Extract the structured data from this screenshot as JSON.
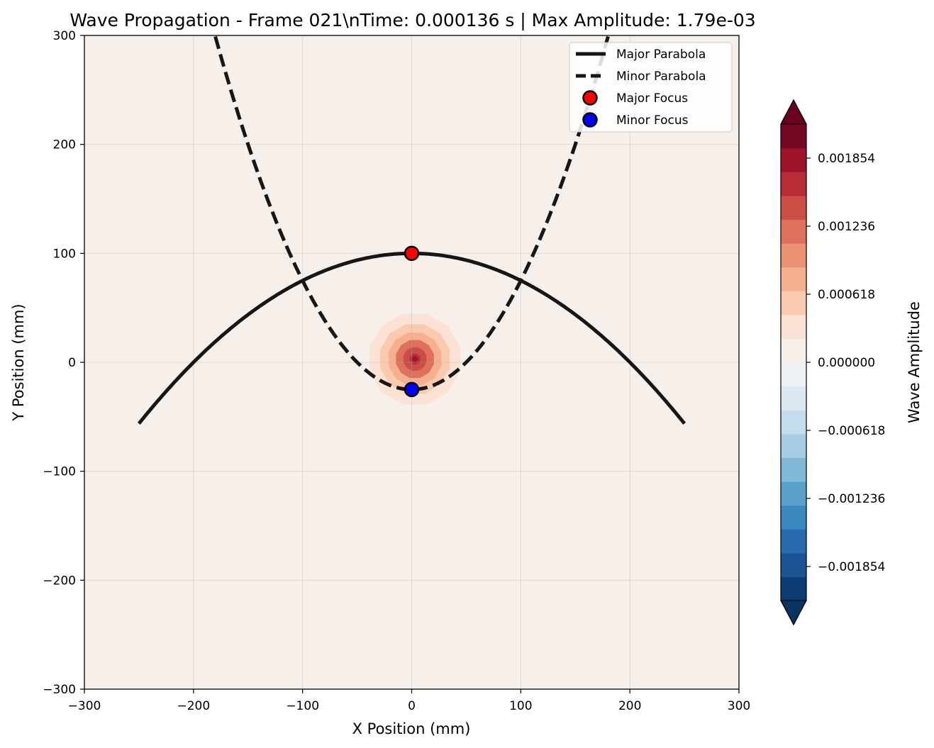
{
  "chart_data": {
    "type": "heatmap",
    "title": "Wave Propagation - Frame 021\\nTime: 0.000136 s | Max Amplitude: 1.79e-03",
    "xlabel": "X Position (mm)",
    "ylabel": "Y Position (mm)",
    "xlim": [
      -300,
      300
    ],
    "ylim": [
      -300,
      300
    ],
    "xticks": [
      -300,
      -200,
      -100,
      0,
      100,
      200,
      300
    ],
    "yticks": [
      -300,
      -200,
      -100,
      0,
      100,
      200,
      300
    ],
    "grid": true,
    "legend_position": "top-right",
    "background_value": 0.0,
    "wave_field": {
      "center": [
        3,
        3
      ],
      "peak_amplitude": 0.00179,
      "low_level_region": {
        "shape": "diamond",
        "half_diagonal_x": 168,
        "half_diagonal_y": 168,
        "center": [
          3,
          3
        ],
        "value": 0.0001
      },
      "rings": [
        {
          "radius": 43,
          "value": 0.0003
        },
        {
          "radius": 33,
          "value": 0.0006
        },
        {
          "radius": 25,
          "value": 0.0008
        },
        {
          "radius": 18,
          "value": 0.0011
        },
        {
          "radius": 11,
          "value": 0.0013
        },
        {
          "radius": 5,
          "value": 0.0017
        }
      ]
    },
    "series": [
      {
        "name": "Major Parabola",
        "style": "solid",
        "color": "#161616",
        "equation": "y = 100 - x^2/400",
        "x_range": [
          -250,
          250
        ]
      },
      {
        "name": "Minor Parabola",
        "style": "dashed",
        "color": "#161616",
        "equation": "y = -25 + x^2/100",
        "x_range": [
          -180,
          180
        ]
      },
      {
        "name": "Major Focus",
        "type": "point",
        "x": 0,
        "y": 100,
        "color": "#ff0000"
      },
      {
        "name": "Minor Focus",
        "type": "point",
        "x": 0,
        "y": -25,
        "color": "#0000ff"
      }
    ],
    "colorbar": {
      "label": "Wave Amplitude",
      "colormap": "RdBu_r",
      "vmin": -0.002163,
      "vmax": 0.002163,
      "levels": 20,
      "ticks": [
        -0.001854,
        -0.001236,
        -0.000618,
        0.0,
        0.000618,
        0.001236,
        0.001854
      ],
      "tick_labels": [
        "−0.001854",
        "−0.001236",
        "−0.000618",
        "0.000000",
        "0.000618",
        "0.001236",
        "0.001854"
      ],
      "extend": "both",
      "colors": [
        "#0b3d73",
        "#1a5494",
        "#2a6bb0",
        "#3b87c0",
        "#5aa0cc",
        "#81b8d8",
        "#a5cde3",
        "#c4ddec",
        "#dbe9f2",
        "#ecf1f4",
        "#f7efea",
        "#fbe2d5",
        "#f9caad",
        "#f4b08f",
        "#eb9274",
        "#de715c",
        "#cc4c46",
        "#b72d35",
        "#9e1529",
        "#760722"
      ],
      "extend_low_color": "#083461",
      "extend_high_color": "#69001f"
    }
  }
}
